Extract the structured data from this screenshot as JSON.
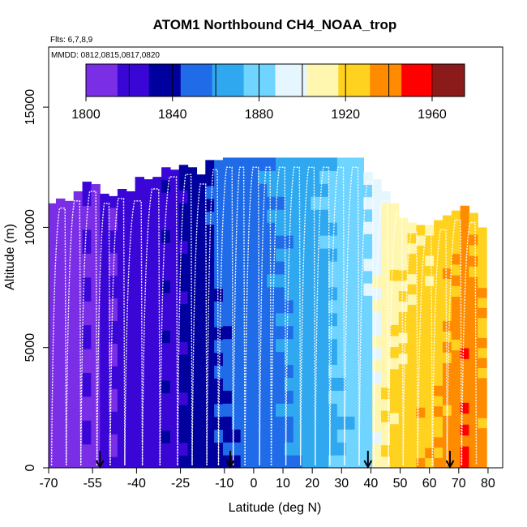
{
  "chart_data": {
    "type": "heatmap",
    "title": "ATOM1 Northbound CH4_NOAA_trop",
    "subtitle_flights": "Flts: 6,7,8,9",
    "subtitle_dates": "MMDD: 0812,0815,0817,0820",
    "xlabel": "Latitude (deg N)",
    "ylabel": "Altitude (m)",
    "xlim": [
      -70,
      85
    ],
    "ylim": [
      0,
      17500
    ],
    "x_tick_labels": [
      "-70",
      "-55",
      "-40",
      "-25",
      "-10",
      "0",
      "10",
      "20",
      "30",
      "40",
      "50",
      "60",
      "70",
      "80"
    ],
    "x_tick_values": [
      -70,
      -55,
      -40,
      -25,
      -10,
      0,
      10,
      20,
      30,
      40,
      50,
      60,
      70,
      80
    ],
    "y_ticks": [
      0,
      5000,
      10000,
      15000
    ],
    "y_tick_labels": [
      "0",
      "5000",
      "10000",
      "15000"
    ],
    "colorbar": {
      "range": [
        1800,
        1975
      ],
      "tick_labels": [
        "1800",
        "1840",
        "1880",
        "1920",
        "1960"
      ],
      "tick_values": [
        1800,
        1840,
        1880,
        1920,
        1960
      ],
      "boundaries": [
        1820,
        1840,
        1860,
        1880,
        1900,
        1920,
        1940,
        1960
      ],
      "colors": [
        "#7a2ee6",
        "#3a06d6",
        "#00009e",
        "#1f6be8",
        "#2fa8f0",
        "#6fd4ff",
        "#e6f6ff",
        "#fff7b0",
        "#ffd21f",
        "#ff8c00",
        "#ff0000",
        "#8b1a1a"
      ]
    },
    "arrows_latitude": [
      -52.5,
      -8,
      39,
      67
    ],
    "curtain_bins": [
      {
        "lat": -69,
        "ch4": 1810,
        "top": 11000
      },
      {
        "lat": -66,
        "ch4": 1808,
        "top": 11200
      },
      {
        "lat": -63,
        "ch4": 1812,
        "top": 11100
      },
      {
        "lat": -60,
        "ch4": 1810,
        "top": 11500
      },
      {
        "lat": -57,
        "ch4": 1815,
        "top": 11900
      },
      {
        "lat": -54,
        "ch4": 1812,
        "top": 11800
      },
      {
        "lat": -51,
        "ch4": 1818,
        "top": 11400
      },
      {
        "lat": -48,
        "ch4": 1815,
        "top": 11300
      },
      {
        "lat": -45,
        "ch4": 1820,
        "top": 11600
      },
      {
        "lat": -42,
        "ch4": 1818,
        "top": 11500
      },
      {
        "lat": -39,
        "ch4": 1822,
        "top": 12100
      },
      {
        "lat": -36,
        "ch4": 1825,
        "top": 12000
      },
      {
        "lat": -33,
        "ch4": 1822,
        "top": 12100
      },
      {
        "lat": -30,
        "ch4": 1828,
        "top": 12500
      },
      {
        "lat": -27,
        "ch4": 1826,
        "top": 12400
      },
      {
        "lat": -24,
        "ch4": 1830,
        "top": 12600
      },
      {
        "lat": -21,
        "ch4": 1834,
        "top": 12500
      },
      {
        "lat": -18,
        "ch4": 1836,
        "top": 12200
      },
      {
        "lat": -15,
        "ch4": 1840,
        "top": 12800
      },
      {
        "lat": -12,
        "ch4": 1845,
        "top": 12800
      },
      {
        "lat": -9,
        "ch4": 1846,
        "top": 12900
      },
      {
        "lat": -6,
        "ch4": 1848,
        "top": 12900
      },
      {
        "lat": -3,
        "ch4": 1850,
        "top": 12900
      },
      {
        "lat": 0,
        "ch4": 1852,
        "top": 12900
      },
      {
        "lat": 3,
        "ch4": 1854,
        "top": 12900
      },
      {
        "lat": 6,
        "ch4": 1856,
        "top": 12900
      },
      {
        "lat": 9,
        "ch4": 1858,
        "top": 12900
      },
      {
        "lat": 12,
        "ch4": 1860,
        "top": 12900
      },
      {
        "lat": 15,
        "ch4": 1863,
        "top": 12900
      },
      {
        "lat": 18,
        "ch4": 1866,
        "top": 12900
      },
      {
        "lat": 21,
        "ch4": 1868,
        "top": 12900
      },
      {
        "lat": 24,
        "ch4": 1870,
        "top": 12900
      },
      {
        "lat": 27,
        "ch4": 1873,
        "top": 12900
      },
      {
        "lat": 30,
        "ch4": 1876,
        "top": 12900
      },
      {
        "lat": 33,
        "ch4": 1878,
        "top": 12900
      },
      {
        "lat": 36,
        "ch4": 1880,
        "top": 12900
      },
      {
        "lat": 39,
        "ch4": 1885,
        "top": 12300
      },
      {
        "lat": 42,
        "ch4": 1895,
        "top": 12000
      },
      {
        "lat": 45,
        "ch4": 1905,
        "top": 11500
      },
      {
        "lat": 48,
        "ch4": 1910,
        "top": 11000
      },
      {
        "lat": 51,
        "ch4": 1912,
        "top": 10400
      },
      {
        "lat": 54,
        "ch4": 1915,
        "top": 10200
      },
      {
        "lat": 57,
        "ch4": 1918,
        "top": 10100
      },
      {
        "lat": 60,
        "ch4": 1916,
        "top": 10100
      },
      {
        "lat": 63,
        "ch4": 1920,
        "top": 10300
      },
      {
        "lat": 66,
        "ch4": 1925,
        "top": 10500
      },
      {
        "lat": 69,
        "ch4": 1928,
        "top": 10700
      },
      {
        "lat": 72,
        "ch4": 1935,
        "top": 10900
      },
      {
        "lat": 75,
        "ch4": 1930,
        "top": 10600
      },
      {
        "lat": 78,
        "ch4": 1925,
        "top": 10000
      }
    ]
  }
}
